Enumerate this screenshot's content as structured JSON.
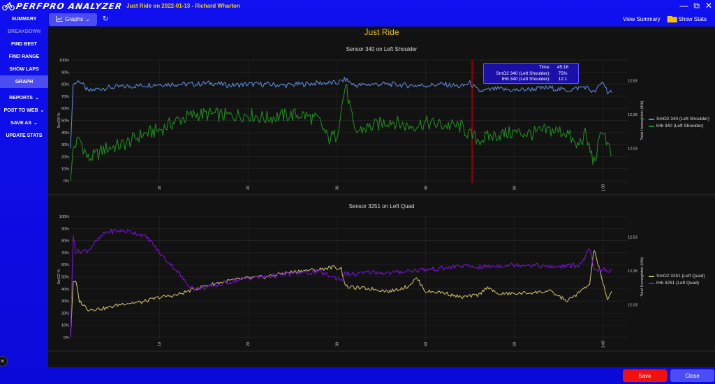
{
  "app": {
    "name": "PERFPRO ANALYZER",
    "ride_title": "Just Ride on 2022-01-13 - Richard Wharton",
    "window_controls": {
      "minimize": "—",
      "restore": "⧉",
      "close": "✕"
    }
  },
  "sidebar": {
    "items": [
      {
        "label": "SUMMARY",
        "state": "normal"
      },
      {
        "label": "BREAKDOWN",
        "state": "disabled"
      },
      {
        "label": "FIND BEST",
        "state": "normal"
      },
      {
        "label": "FIND RANGE",
        "state": "normal"
      },
      {
        "label": "SHOW LAPS",
        "state": "normal"
      },
      {
        "label": "GRAPH",
        "state": "active"
      },
      {
        "label": "REPORTS",
        "state": "dropdown"
      },
      {
        "label": "POST TO WEB",
        "state": "dropdown"
      },
      {
        "label": "SAVE AS",
        "state": "dropdown"
      },
      {
        "label": "UPDATE STATS",
        "state": "normal"
      }
    ],
    "chevron": "⌄"
  },
  "toolbar": {
    "graphs_label": "Graphs",
    "graphs_icon": "line-chart-icon",
    "refresh_icon": "↻",
    "view_summary": "View Summary",
    "show_stats": "Show Stats",
    "stats_icon": "bar-chart-icon"
  },
  "main": {
    "title": "Just Ride",
    "colors": {
      "title": "#e8c200",
      "background": "#121212",
      "cursor": "#8b0000"
    }
  },
  "tooltip": {
    "rows": [
      {
        "key": "Time:",
        "value": "45:16"
      },
      {
        "key": "SmO2 340 (Left Shoulder):",
        "value": "75%"
      },
      {
        "key": "tHb 340 (Left Shoulder):",
        "value": "12.1"
      }
    ]
  },
  "footer": {
    "save": "Save",
    "close": "Close"
  },
  "chart_data": [
    {
      "type": "line",
      "title": "Sensor 340 on Left Shoulder",
      "xlabel": "",
      "ylabel": "SmO2 %",
      "y2label": "Total Hemoglobin (tHb)",
      "yticks": [
        "0%",
        "10%",
        "20%",
        "30%",
        "40%",
        "50%",
        "60%",
        "70%",
        "80%",
        "90%",
        "100%"
      ],
      "y2ticks": [
        "12.03",
        "12.28",
        "12.53"
      ],
      "xticks": [
        "10",
        "20",
        "30",
        "40",
        "50",
        "1:00"
      ],
      "ylim": [
        0,
        100
      ],
      "grid": true,
      "legend_position": "right",
      "cursor_time": "45:16",
      "series": [
        {
          "name": "SmO2 340 (Left Shoulder)",
          "color": "#5b86d6",
          "x": [
            0,
            0.3,
            1,
            2,
            3,
            4,
            6,
            8,
            10,
            12,
            14,
            16,
            18,
            20,
            22,
            24,
            26,
            28,
            30,
            31,
            32,
            34,
            36,
            38,
            40,
            42,
            44,
            45,
            46,
            48,
            50,
            52,
            54,
            56,
            58,
            59,
            60,
            60.5,
            61
          ],
          "values": [
            27,
            80,
            83,
            74,
            76,
            77,
            78,
            79,
            80,
            80,
            80,
            81,
            79,
            80,
            80,
            79,
            80,
            81,
            81,
            84,
            79,
            80,
            80,
            79,
            79,
            80,
            78,
            81,
            74,
            76,
            75,
            76,
            77,
            75,
            78,
            73,
            82,
            74,
            73
          ]
        },
        {
          "name": "tHb 340 (Left Shoulder)",
          "color": "#1f8a1f",
          "x": [
            0,
            0.3,
            1,
            2,
            3,
            4,
            6,
            8,
            10,
            12,
            14,
            16,
            18,
            20,
            22,
            24,
            26,
            28,
            29,
            30,
            31,
            32,
            33,
            34,
            36,
            38,
            40,
            42,
            44,
            45,
            46,
            48,
            50,
            52,
            54,
            56,
            57,
            58,
            59,
            60,
            60.5,
            61
          ],
          "values": [
            0,
            27,
            35,
            18,
            22,
            27,
            30,
            38,
            42,
            50,
            55,
            55,
            54,
            55,
            52,
            54,
            55,
            50,
            35,
            38,
            80,
            40,
            43,
            45,
            50,
            45,
            48,
            46,
            45,
            38,
            34,
            38,
            40,
            39,
            42,
            40,
            28,
            38,
            15,
            44,
            30,
            21
          ]
        }
      ]
    },
    {
      "type": "line",
      "title": "Sensor 3251 on Left Quad",
      "xlabel": "",
      "ylabel": "SmO2 %",
      "y2label": "Total Hemoglobin (tHb)",
      "yticks": [
        "0%",
        "10%",
        "20%",
        "30%",
        "40%",
        "50%",
        "60%",
        "70%",
        "80%",
        "90%",
        "100%"
      ],
      "y2ticks": [
        "12.03",
        "12.28",
        "12.53"
      ],
      "xticks": [
        "10",
        "20",
        "30",
        "40",
        "50",
        "1:00"
      ],
      "ylim": [
        0,
        100
      ],
      "grid": true,
      "legend_position": "right",
      "series": [
        {
          "name": "SmO2 3251 (Left Quad)",
          "color": "#c8b96a",
          "x": [
            0,
            0.3,
            0.6,
            1,
            2,
            4,
            6,
            8,
            10,
            12,
            14,
            16,
            18,
            20,
            22,
            24,
            26,
            28,
            29.5,
            30.5,
            31,
            32,
            34,
            36,
            38,
            39,
            40,
            42,
            44,
            46,
            47,
            48,
            50,
            52,
            54,
            56,
            57.5,
            58.5,
            59,
            60,
            60.5,
            61
          ],
          "values": [
            0,
            46,
            46,
            30,
            23,
            24,
            28,
            29,
            33,
            35,
            40,
            44,
            47,
            49,
            50,
            53,
            55,
            56,
            58,
            57,
            42,
            41,
            40,
            38,
            42,
            49,
            38,
            37,
            33,
            35,
            42,
            36,
            36,
            37,
            38,
            30,
            38,
            44,
            73,
            45,
            30,
            38
          ]
        },
        {
          "name": "tHb 3251 (Left Quad)",
          "color": "#7a12d4",
          "x": [
            0,
            0.3,
            0.6,
            1,
            2,
            3,
            4,
            5,
            6,
            7,
            8,
            9,
            10,
            12,
            13,
            14,
            16,
            18,
            20,
            22,
            24,
            26,
            28,
            29.5,
            30.5,
            31,
            32,
            34,
            36,
            38,
            40,
            42,
            44,
            46,
            48,
            50,
            52,
            54,
            56,
            57.5,
            58.5,
            59,
            60,
            60.5,
            61
          ],
          "values": [
            0,
            84,
            71,
            71,
            72,
            80,
            87,
            88,
            88,
            87,
            85,
            80,
            70,
            55,
            45,
            40,
            42,
            46,
            49,
            50,
            52,
            53,
            54,
            50,
            48,
            53,
            52,
            54,
            53,
            55,
            56,
            57,
            59,
            58,
            59,
            60,
            60,
            58,
            59,
            60,
            73,
            55,
            57,
            53,
            56
          ]
        }
      ]
    }
  ]
}
